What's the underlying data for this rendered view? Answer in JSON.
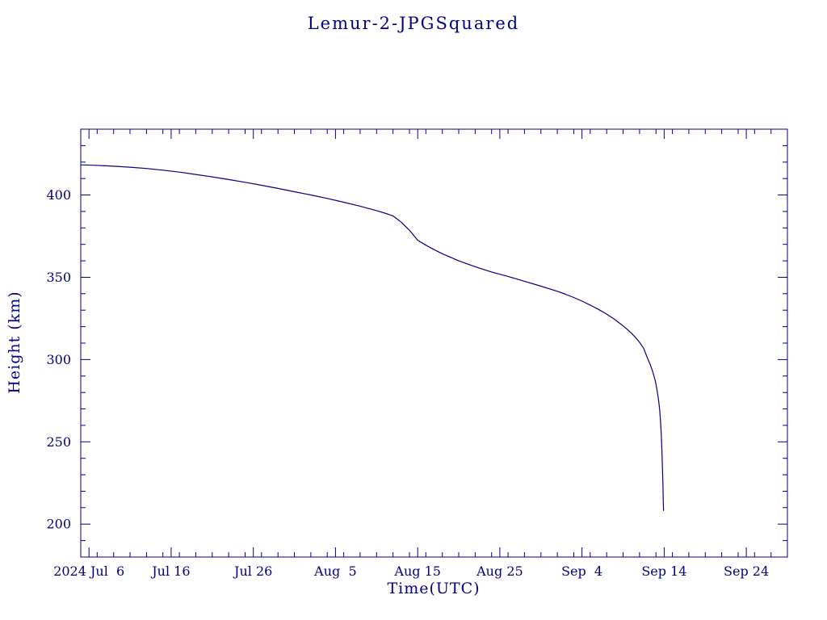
{
  "page": {
    "background": "#ffffff"
  },
  "chart_data": {
    "type": "line",
    "title": "Lemur-2-JPGSquared",
    "xlabel": "Time(UTC)",
    "ylabel": "Height (km)",
    "line_color": "#000080",
    "axis_color": "#000080",
    "text_color": "#000080",
    "grid": false,
    "legend": "none",
    "x_unit": "days since 2024-07-01",
    "x_domain_days": [
      4,
      90
    ],
    "ylim": [
      180,
      440
    ],
    "x_major_ticks": [
      {
        "day": 5,
        "label": "2024 Jul  6"
      },
      {
        "day": 15,
        "label": "Jul 16"
      },
      {
        "day": 25,
        "label": "Jul 26"
      },
      {
        "day": 35,
        "label": "Aug  5"
      },
      {
        "day": 45,
        "label": "Aug 15"
      },
      {
        "day": 55,
        "label": "Aug 25"
      },
      {
        "day": 65,
        "label": "Sep  4"
      },
      {
        "day": 75,
        "label": "Sep 14"
      },
      {
        "day": 85,
        "label": "Sep 24"
      }
    ],
    "y_major_ticks": [
      200,
      250,
      300,
      350,
      400
    ],
    "x_minor_step_days": 2,
    "y_minor_step": 10,
    "series": [
      {
        "name": "Lemur-2-JPGSquared height",
        "points": [
          [
            4,
            418.3
          ],
          [
            6,
            418.0
          ],
          [
            8,
            417.5
          ],
          [
            10,
            416.9
          ],
          [
            12,
            416.1
          ],
          [
            14,
            415.1
          ],
          [
            16,
            413.9
          ],
          [
            18,
            412.5
          ],
          [
            20,
            411.0
          ],
          [
            22,
            409.4
          ],
          [
            24,
            407.7
          ],
          [
            26,
            405.9
          ],
          [
            28,
            404.0
          ],
          [
            30,
            402.0
          ],
          [
            32,
            400.0
          ],
          [
            34,
            397.9
          ],
          [
            36,
            395.6
          ],
          [
            38,
            393.2
          ],
          [
            40,
            390.5
          ],
          [
            41,
            389.0
          ],
          [
            42,
            387.3
          ],
          [
            43,
            383.5
          ],
          [
            44,
            378.6
          ],
          [
            45,
            372.5
          ],
          [
            46,
            369.5
          ],
          [
            47,
            366.8
          ],
          [
            48,
            364.3
          ],
          [
            50,
            360.0
          ],
          [
            52,
            356.4
          ],
          [
            54,
            353.2
          ],
          [
            56,
            350.5
          ],
          [
            58,
            347.6
          ],
          [
            60,
            344.6
          ],
          [
            62,
            341.5
          ],
          [
            63,
            339.7
          ],
          [
            64,
            337.7
          ],
          [
            65,
            335.5
          ],
          [
            66,
            333.1
          ],
          [
            67,
            330.5
          ],
          [
            68,
            327.6
          ],
          [
            69,
            324.3
          ],
          [
            70,
            320.5
          ],
          [
            71,
            316.1
          ],
          [
            71.5,
            313.5
          ],
          [
            72,
            310.5
          ],
          [
            72.5,
            306.9
          ],
          [
            73,
            300.5
          ],
          [
            73.3,
            297.0
          ],
          [
            73.6,
            292.8
          ],
          [
            73.9,
            287.5
          ],
          [
            74.1,
            282.5
          ],
          [
            74.3,
            276.0
          ],
          [
            74.45,
            269.5
          ],
          [
            74.55,
            263.0
          ],
          [
            74.65,
            254.5
          ],
          [
            74.72,
            246.0
          ],
          [
            74.78,
            236.5
          ],
          [
            74.84,
            225.0
          ],
          [
            74.89,
            213.0
          ],
          [
            74.92,
            208.3
          ]
        ]
      }
    ]
  }
}
